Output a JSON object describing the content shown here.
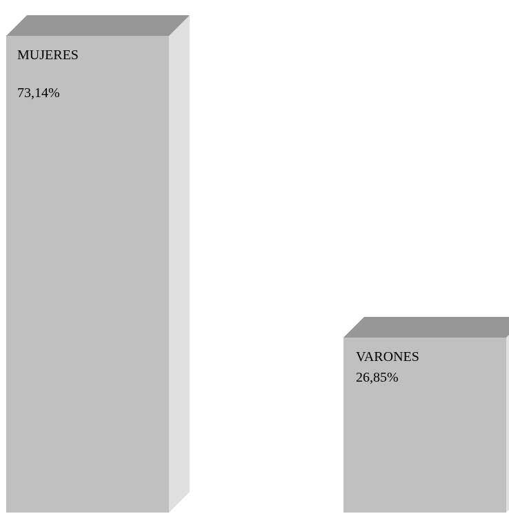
{
  "chart_data": {
    "type": "bar",
    "style": "3d",
    "categories": [
      "MUJERES",
      "VARONES"
    ],
    "values": [
      73.14,
      26.85
    ],
    "value_labels": [
      "73,14%",
      "26,85%"
    ],
    "unit": "%",
    "title": "",
    "xlabel": "",
    "ylabel": "",
    "grid": false,
    "legend": "none"
  },
  "colors": {
    "bar_front": "#c0c0c0",
    "bar_top": "#969696",
    "bar_side": "#e0e0e0",
    "text": "#000000",
    "background": "#ffffff"
  }
}
